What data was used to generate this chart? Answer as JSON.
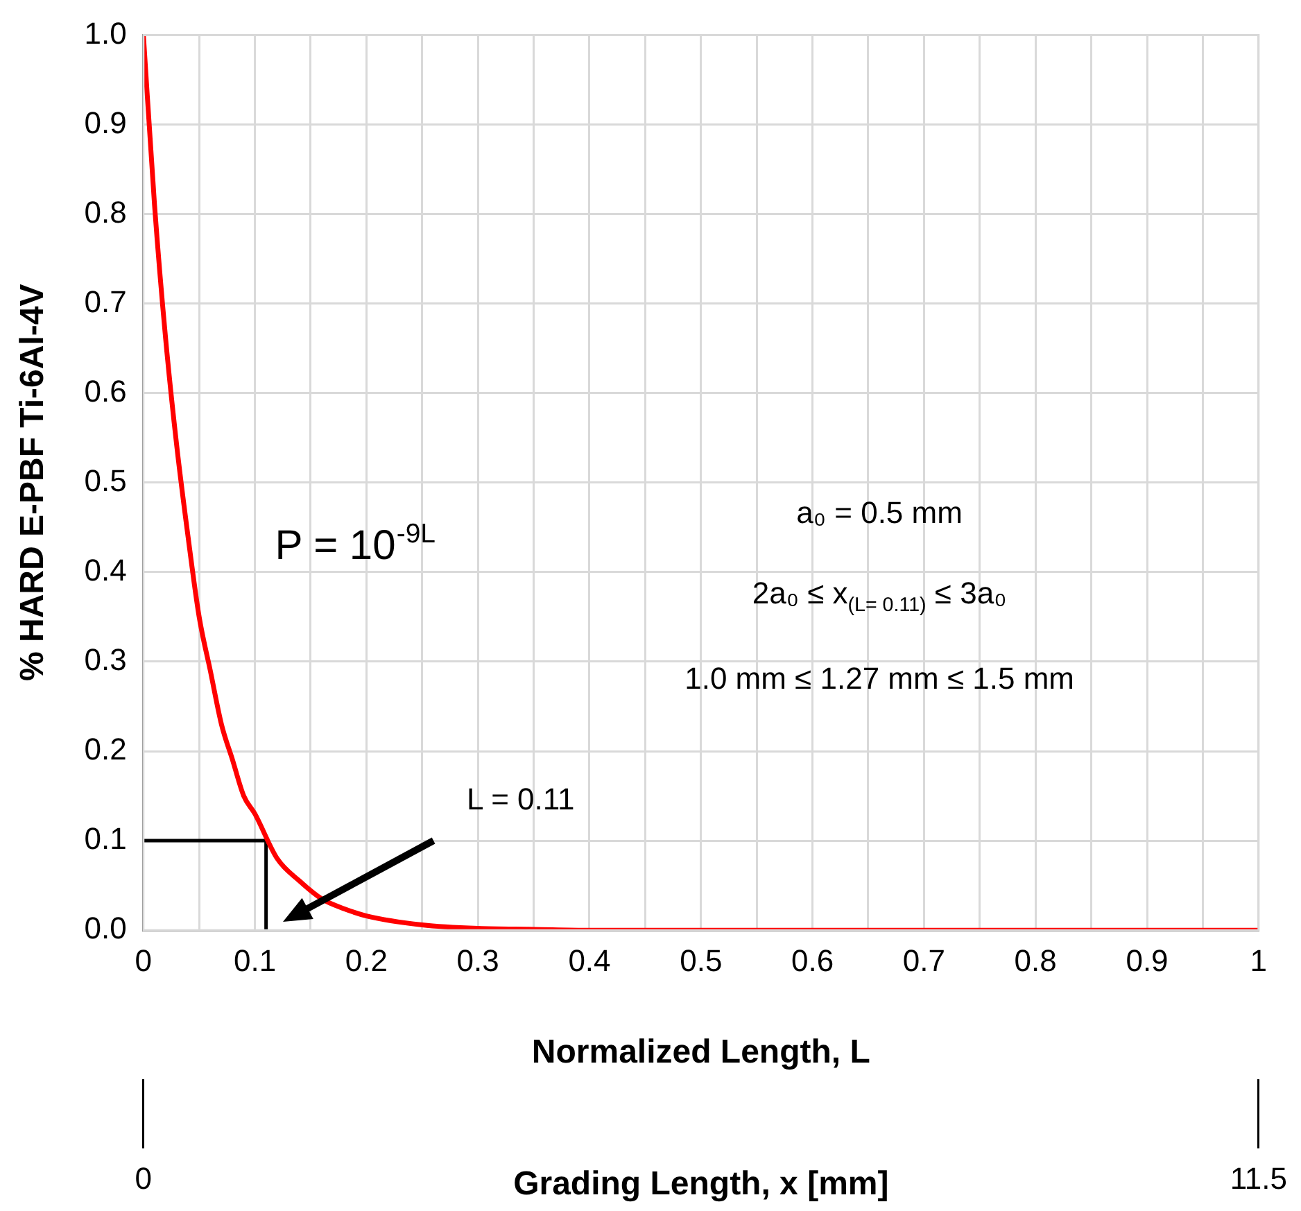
{
  "chart_data": {
    "type": "line",
    "xlabel": "Normalized Length, L",
    "ylabel": "% HARD E-PBF Ti-6Al-4V",
    "x2label": "Grading Length, x [mm]",
    "xlim": [
      0,
      1
    ],
    "xticks": [
      0,
      {
        "value": 0.05,
        "label": null
      },
      0.1,
      {
        "value": 0.15,
        "label": null
      },
      0.2,
      {
        "value": 0.25,
        "label": null
      },
      0.3,
      {
        "value": 0.35,
        "label": null
      },
      0.4,
      {
        "value": 0.45,
        "label": null
      },
      0.5,
      {
        "value": 0.55,
        "label": null
      },
      0.6,
      {
        "value": 0.65,
        "label": null
      },
      0.7,
      {
        "value": 0.75,
        "label": null
      },
      0.8,
      {
        "value": 0.85,
        "label": null
      },
      0.9,
      {
        "value": 0.95,
        "label": null
      },
      1
    ],
    "ylim": [
      0,
      1
    ],
    "yticks": [
      {
        "value": 0,
        "label": "0.0"
      },
      0.1,
      0.2,
      0.3,
      0.4,
      0.5,
      0.6,
      0.7,
      0.8,
      0.9,
      {
        "value": 1,
        "label": "1.0"
      }
    ],
    "x2lim": [
      0,
      11.5
    ],
    "x2ticks": [
      0,
      11.5
    ],
    "grid": true,
    "legend": false,
    "marker": "none",
    "series": [
      {
        "color": "#ff0000",
        "x": [
          0,
          0.01,
          0.02,
          0.03,
          0.04,
          0.05,
          0.06,
          0.07,
          0.08,
          0.09,
          0.1,
          0.12,
          0.14,
          0.16,
          0.18,
          0.2,
          0.25,
          0.3,
          0.35,
          0.4,
          0.5,
          0.6,
          0.7,
          0.8,
          0.9,
          1
        ],
        "values": [
          1,
          0.81,
          0.66,
          0.54,
          0.44,
          0.35,
          0.29,
          0.23,
          0.19,
          0.15,
          0.13,
          0.08,
          0.055,
          0.035,
          0.024,
          0.016,
          0.006,
          0.002,
          0.001,
          0,
          0,
          0,
          0,
          0,
          0,
          0
        ]
      },
      {
        "color": "#000000",
        "x": [
          0,
          0.11,
          0.11
        ],
        "values": [
          0.1,
          0.1,
          0
        ]
      }
    ],
    "annotations": [
      "P = 10$^{-9L}$",
      "a₀ = 0.5 mm",
      "2a₀ ≤ x$_{(L= 0.11)}$ ≤ 3a₀",
      "1.0 mm ≤ 1.27 mm ≤ 1.5 mm",
      "L = 0.11"
    ]
  }
}
